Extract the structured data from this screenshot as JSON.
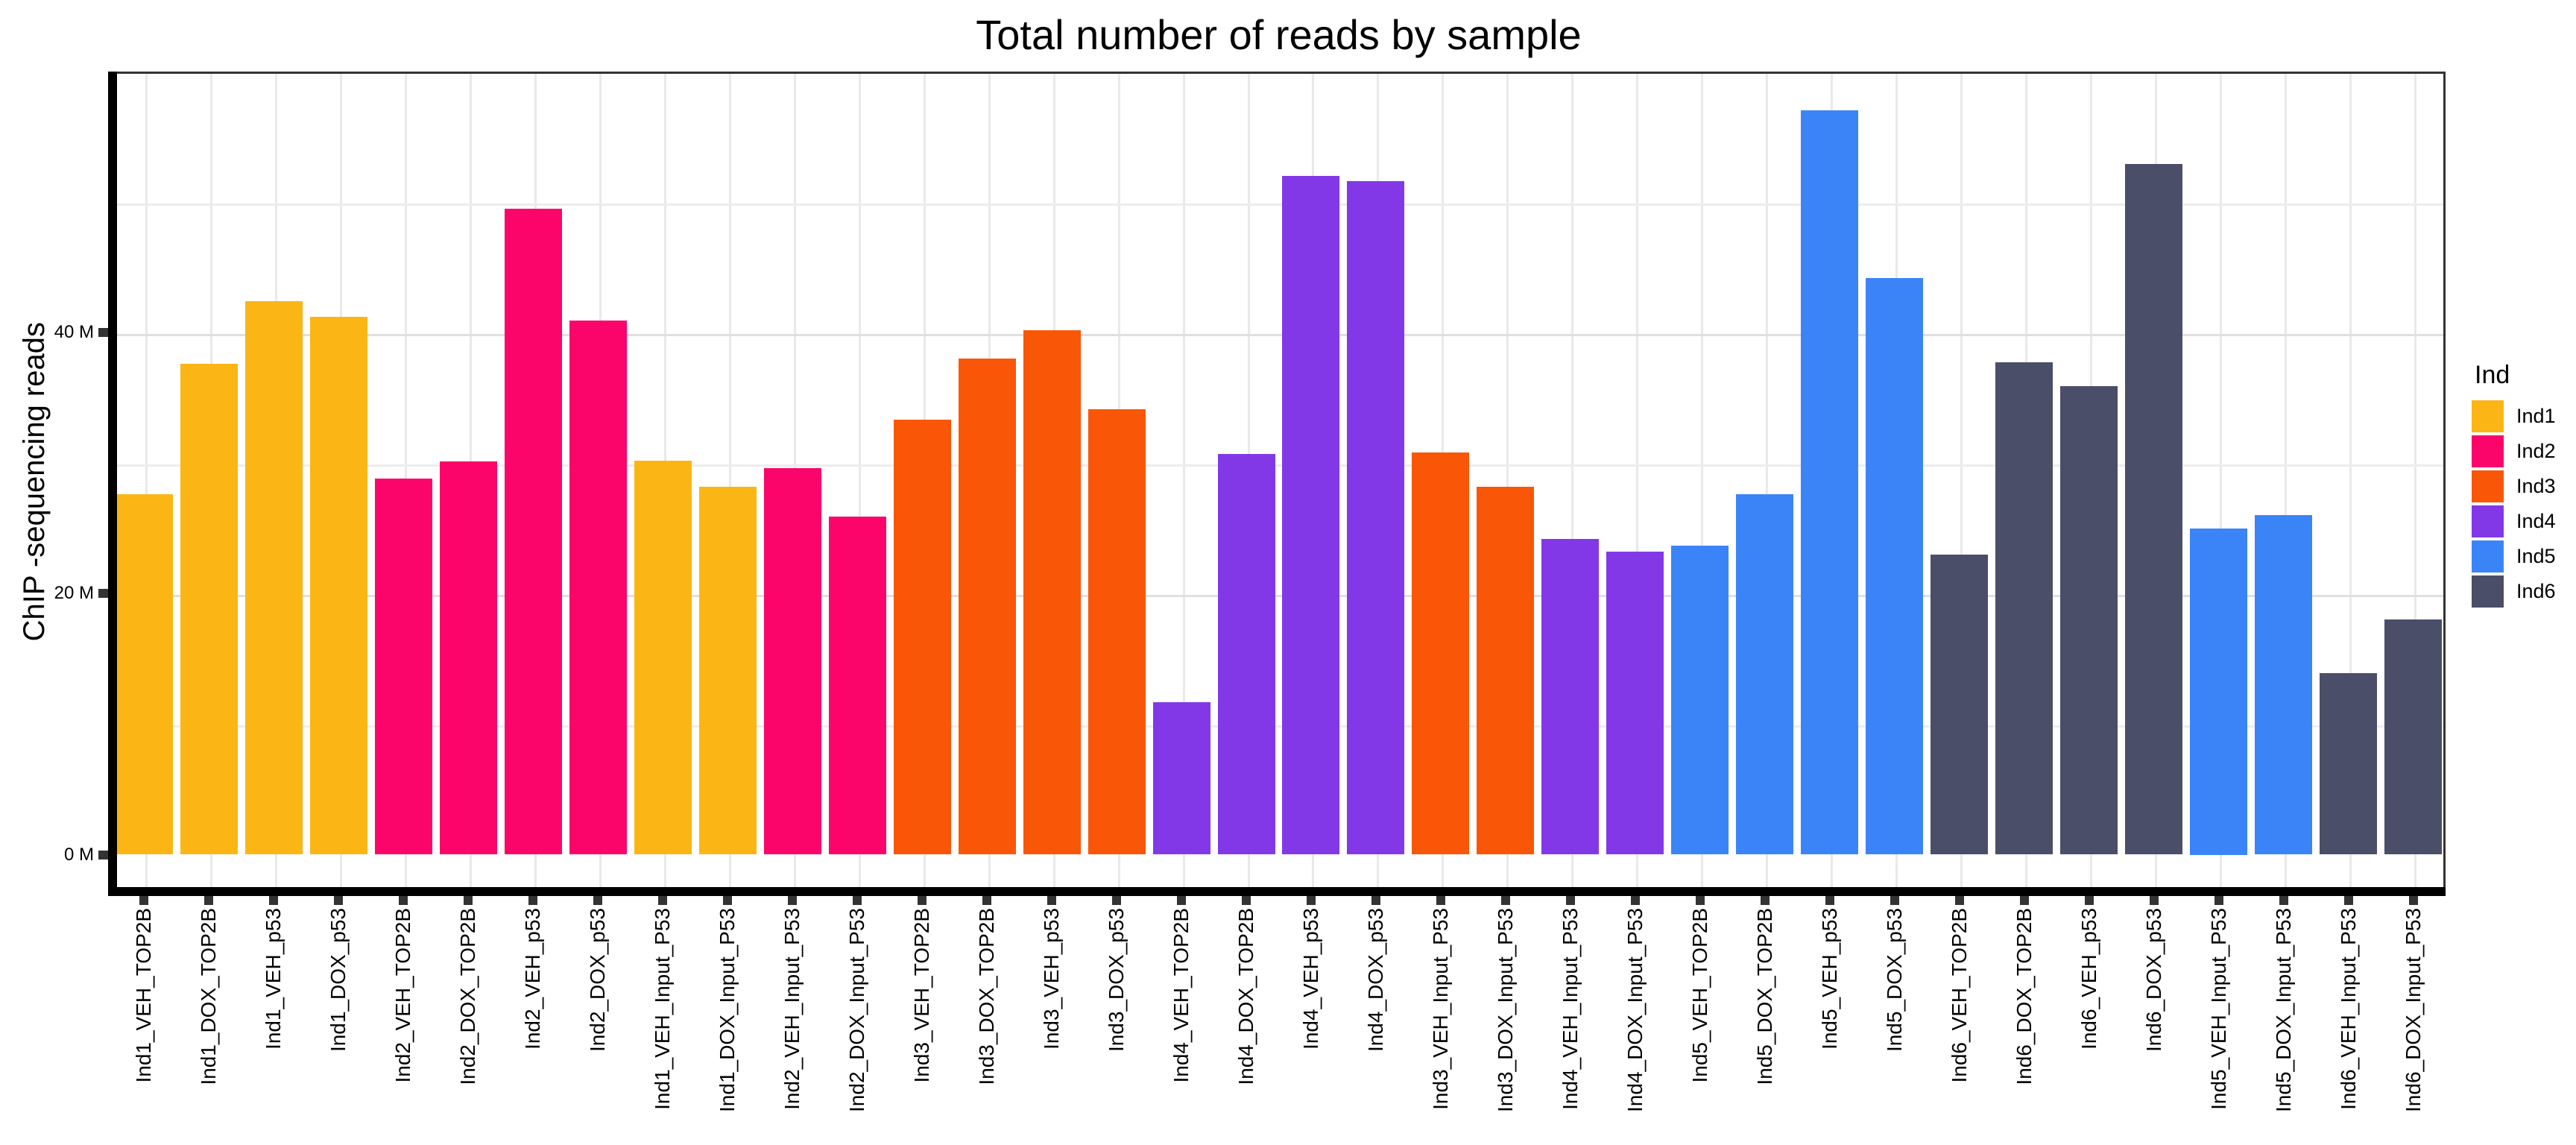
{
  "title": "Total number of reads by sample",
  "y_axis": {
    "label": "ChIP -sequencing reads",
    "ticks": [
      {
        "label": "0 M",
        "value": 0
      },
      {
        "label": "20 M",
        "value": 20
      },
      {
        "label": "40 M",
        "value": 40
      }
    ]
  },
  "legend": {
    "title": "Ind",
    "entries": [
      {
        "label": "Ind1",
        "color": "#FBB615"
      },
      {
        "label": "Ind2",
        "color": "#FB056B"
      },
      {
        "label": "Ind3",
        "color": "#F95608"
      },
      {
        "label": "Ind4",
        "color": "#8338E8"
      },
      {
        "label": "Ind5",
        "color": "#3B84F8"
      },
      {
        "label": "Ind6",
        "color": "#4A4E69"
      }
    ]
  },
  "chart_data": {
    "type": "bar",
    "title": "Total number of reads by sample",
    "xlabel": "",
    "ylabel": "ChIP -sequencing reads",
    "y_unit": "millions of reads",
    "ylim": [
      0,
      60
    ],
    "y_major_ticks": [
      0,
      20,
      40
    ],
    "y_minor_gridlines": [
      10,
      30,
      50
    ],
    "grid": true,
    "legend_position": "right",
    "legend_title": "Ind",
    "categories": [
      "Ind1_VEH_TOP2B",
      "Ind1_DOX_TOP2B",
      "Ind1_VEH_p53",
      "Ind1_DOX_p53",
      "Ind2_VEH_TOP2B",
      "Ind2_DOX_TOP2B",
      "Ind2_VEH_p53",
      "Ind2_DOX_p53",
      "Ind1_VEH_Input_P53",
      "Ind1_DOX_Input_P53",
      "Ind2_VEH_Input_P53",
      "Ind2_DOX_Input_P53",
      "Ind3_VEH_TOP2B",
      "Ind3_DOX_TOP2B",
      "Ind3_VEH_p53",
      "Ind3_DOX_p53",
      "Ind4_VEH_TOP2B",
      "Ind4_DOX_TOP2B",
      "Ind4_VEH_p53",
      "Ind4_DOX_p53",
      "Ind3_VEH_Input_P53",
      "Ind3_DOX_Input_P53",
      "Ind4_VEH_Input_P53",
      "Ind4_DOX_Input_P53",
      "Ind5_VEH_TOP2B",
      "Ind5_DOX_TOP2B",
      "Ind5_VEH_p53",
      "Ind5_DOX_p53",
      "Ind6_VEH_TOP2B",
      "Ind6_DOX_TOP2B",
      "Ind6_VEH_p53",
      "Ind6_DOX_p53",
      "Ind5_VEH_Input_P53",
      "Ind5_DOX_Input_P53",
      "Ind6_VEH_Input_P53",
      "Ind6_DOX_Input_P53"
    ],
    "values": [
      27.6,
      37.6,
      42.4,
      41.2,
      28.8,
      30.1,
      49.5,
      40.9,
      30.2,
      28.2,
      29.6,
      25.9,
      33.3,
      38.0,
      40.2,
      34.1,
      11.7,
      30.7,
      52.0,
      51.6,
      30.8,
      28.2,
      24.2,
      23.2,
      23.7,
      27.6,
      57.0,
      44.2,
      23.0,
      37.7,
      35.9,
      52.9,
      25.0,
      26.0,
      13.9,
      18.0
    ],
    "groups": [
      "Ind1",
      "Ind1",
      "Ind1",
      "Ind1",
      "Ind2",
      "Ind2",
      "Ind2",
      "Ind2",
      "Ind1",
      "Ind1",
      "Ind2",
      "Ind2",
      "Ind3",
      "Ind3",
      "Ind3",
      "Ind3",
      "Ind4",
      "Ind4",
      "Ind4",
      "Ind4",
      "Ind3",
      "Ind3",
      "Ind4",
      "Ind4",
      "Ind5",
      "Ind5",
      "Ind5",
      "Ind5",
      "Ind6",
      "Ind6",
      "Ind6",
      "Ind6",
      "Ind5",
      "Ind5",
      "Ind6",
      "Ind6"
    ],
    "colors": {
      "Ind1": "#FBB615",
      "Ind2": "#FB056B",
      "Ind3": "#F95608",
      "Ind4": "#8338E8",
      "Ind5": "#3B84F8",
      "Ind6": "#4A4E69"
    }
  }
}
